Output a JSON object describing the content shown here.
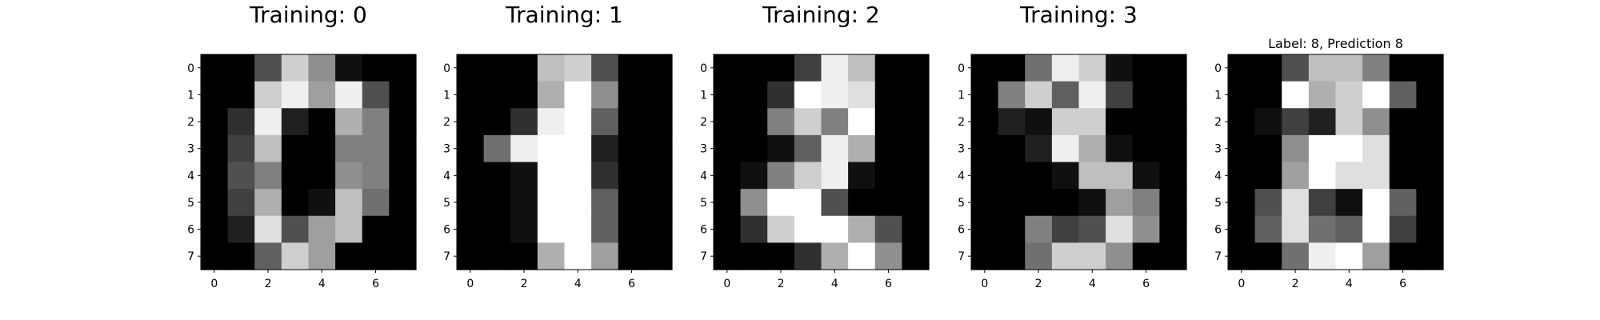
{
  "chart_data": [
    {
      "type": "heatmap",
      "title": "Training: 0",
      "colormap": "gray_r",
      "value_range": [
        0,
        16
      ],
      "x_ticks": [
        "0",
        "2",
        "4",
        "6"
      ],
      "y_ticks": [
        "0",
        "1",
        "2",
        "3",
        "4",
        "5",
        "6",
        "7"
      ],
      "grid": false,
      "values": [
        [
          0,
          0,
          5,
          13,
          9,
          1,
          0,
          0
        ],
        [
          0,
          0,
          13,
          15,
          10,
          15,
          5,
          0
        ],
        [
          0,
          3,
          15,
          2,
          0,
          11,
          8,
          0
        ],
        [
          0,
          4,
          12,
          0,
          0,
          8,
          8,
          0
        ],
        [
          0,
          5,
          8,
          0,
          0,
          9,
          8,
          0
        ],
        [
          0,
          4,
          11,
          0,
          1,
          12,
          7,
          0
        ],
        [
          0,
          2,
          14,
          5,
          10,
          12,
          0,
          0
        ],
        [
          0,
          0,
          6,
          13,
          10,
          0,
          0,
          0
        ]
      ]
    },
    {
      "type": "heatmap",
      "title": "Training: 1",
      "colormap": "gray_r",
      "value_range": [
        0,
        16
      ],
      "x_ticks": [
        "0",
        "2",
        "4",
        "6"
      ],
      "y_ticks": [
        "0",
        "1",
        "2",
        "3",
        "4",
        "5",
        "6",
        "7"
      ],
      "grid": false,
      "values": [
        [
          0,
          0,
          0,
          12,
          13,
          5,
          0,
          0
        ],
        [
          0,
          0,
          0,
          11,
          16,
          9,
          0,
          0
        ],
        [
          0,
          0,
          3,
          15,
          16,
          6,
          0,
          0
        ],
        [
          0,
          7,
          15,
          16,
          16,
          2,
          0,
          0
        ],
        [
          0,
          0,
          1,
          16,
          16,
          3,
          0,
          0
        ],
        [
          0,
          0,
          1,
          16,
          16,
          6,
          0,
          0
        ],
        [
          0,
          0,
          1,
          16,
          16,
          6,
          0,
          0
        ],
        [
          0,
          0,
          0,
          11,
          16,
          10,
          0,
          0
        ]
      ]
    },
    {
      "type": "heatmap",
      "title": "Training: 2",
      "colormap": "gray_r",
      "value_range": [
        0,
        16
      ],
      "x_ticks": [
        "0",
        "2",
        "4",
        "6"
      ],
      "y_ticks": [
        "0",
        "1",
        "2",
        "3",
        "4",
        "5",
        "6",
        "7"
      ],
      "grid": false,
      "values": [
        [
          0,
          0,
          0,
          4,
          15,
          12,
          0,
          0
        ],
        [
          0,
          0,
          3,
          16,
          15,
          14,
          0,
          0
        ],
        [
          0,
          0,
          8,
          13,
          8,
          16,
          0,
          0
        ],
        [
          0,
          0,
          1,
          6,
          15,
          11,
          0,
          0
        ],
        [
          0,
          1,
          8,
          13,
          15,
          1,
          0,
          0
        ],
        [
          0,
          9,
          16,
          16,
          5,
          0,
          0,
          0
        ],
        [
          0,
          3,
          13,
          16,
          16,
          11,
          5,
          0
        ],
        [
          0,
          0,
          0,
          3,
          11,
          16,
          9,
          0
        ]
      ]
    },
    {
      "type": "heatmap",
      "title": "Training: 3",
      "colormap": "gray_r",
      "value_range": [
        0,
        16
      ],
      "x_ticks": [
        "0",
        "2",
        "4",
        "6"
      ],
      "y_ticks": [
        "0",
        "1",
        "2",
        "3",
        "4",
        "5",
        "6",
        "7"
      ],
      "grid": false,
      "values": [
        [
          0,
          0,
          7,
          15,
          13,
          1,
          0,
          0
        ],
        [
          0,
          8,
          13,
          6,
          15,
          4,
          0,
          0
        ],
        [
          0,
          2,
          1,
          13,
          13,
          0,
          0,
          0
        ],
        [
          0,
          0,
          2,
          15,
          11,
          1,
          0,
          0
        ],
        [
          0,
          0,
          0,
          1,
          12,
          12,
          1,
          0
        ],
        [
          0,
          0,
          0,
          0,
          1,
          10,
          8,
          0
        ],
        [
          0,
          0,
          8,
          4,
          5,
          14,
          9,
          0
        ],
        [
          0,
          0,
          7,
          13,
          13,
          9,
          0,
          0
        ]
      ]
    },
    {
      "type": "heatmap",
      "title": "Label: 8, Prediction 8",
      "colormap": "gray_r",
      "value_range": [
        0,
        16
      ],
      "x_ticks": [
        "0",
        "2",
        "4",
        "6"
      ],
      "y_ticks": [
        "0",
        "1",
        "2",
        "3",
        "4",
        "5",
        "6",
        "7"
      ],
      "grid": false,
      "values": [
        [
          0,
          0,
          5,
          12,
          12,
          8,
          0,
          0
        ],
        [
          0,
          0,
          16,
          11,
          13,
          16,
          6,
          0
        ],
        [
          0,
          1,
          4,
          2,
          13,
          9,
          0,
          0
        ],
        [
          0,
          0,
          9,
          16,
          16,
          14,
          0,
          0
        ],
        [
          0,
          0,
          10,
          16,
          14,
          14,
          0,
          0
        ],
        [
          0,
          5,
          14,
          4,
          1,
          16,
          6,
          0
        ],
        [
          0,
          6,
          14,
          7,
          6,
          16,
          4,
          0
        ],
        [
          0,
          0,
          7,
          15,
          16,
          10,
          0,
          0
        ]
      ]
    }
  ]
}
